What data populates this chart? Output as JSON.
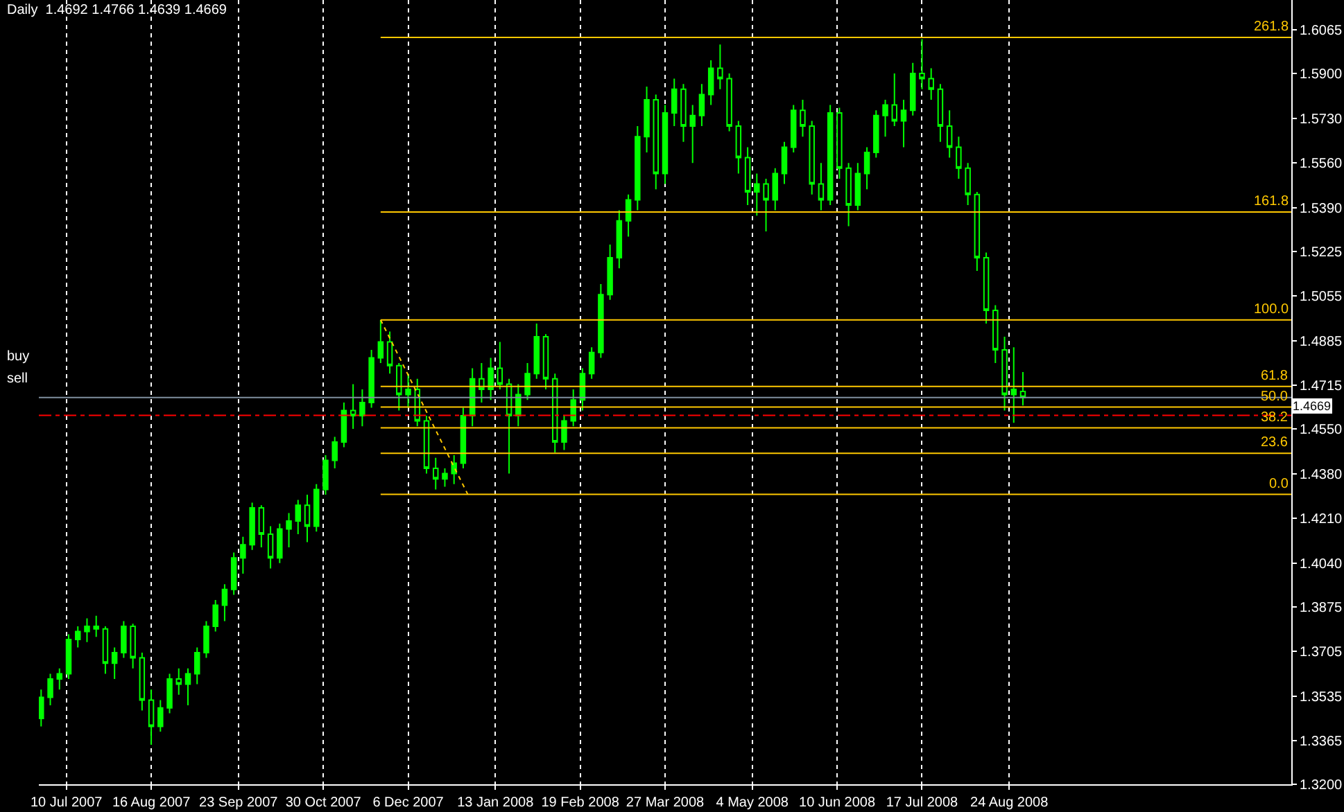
{
  "chart_data": {
    "type": "candlestick",
    "title": "Daily  1.4692 1.4766 1.4639 1.4669",
    "color": "#00ff00",
    "x": [
      "2007-06-29",
      "2007-07-03",
      "2007-07-07",
      "2007-07-11",
      "2007-07-15",
      "2007-07-19",
      "2007-07-23",
      "2007-07-27",
      "2007-07-31",
      "2007-08-04",
      "2007-08-08",
      "2007-08-12",
      "2007-08-16",
      "2007-08-20",
      "2007-08-24",
      "2007-08-28",
      "2007-09-01",
      "2007-09-05",
      "2007-09-09",
      "2007-09-13",
      "2007-09-17",
      "2007-09-21",
      "2007-09-25",
      "2007-09-29",
      "2007-10-03",
      "2007-10-07",
      "2007-10-11",
      "2007-10-15",
      "2007-10-19",
      "2007-10-23",
      "2007-10-27",
      "2007-10-31",
      "2007-11-04",
      "2007-11-08",
      "2007-11-12",
      "2007-11-16",
      "2007-11-20",
      "2007-11-24",
      "2007-11-28",
      "2007-12-02",
      "2007-12-06",
      "2007-12-10",
      "2007-12-14",
      "2007-12-18",
      "2007-12-22",
      "2007-12-26",
      "2007-12-30",
      "2008-01-03",
      "2008-01-07",
      "2008-01-11",
      "2008-01-15",
      "2008-01-19",
      "2008-01-23",
      "2008-01-27",
      "2008-01-31",
      "2008-02-04",
      "2008-02-08",
      "2008-02-12",
      "2008-02-16",
      "2008-02-20",
      "2008-02-24",
      "2008-02-28",
      "2008-03-03",
      "2008-03-07",
      "2008-03-11",
      "2008-03-15",
      "2008-03-19",
      "2008-03-23",
      "2008-03-27",
      "2008-03-31",
      "2008-04-04",
      "2008-04-08",
      "2008-04-12",
      "2008-04-16",
      "2008-04-20",
      "2008-04-24",
      "2008-04-28",
      "2008-05-02",
      "2008-05-06",
      "2008-05-10",
      "2008-05-14",
      "2008-05-18",
      "2008-05-22",
      "2008-05-26",
      "2008-05-30",
      "2008-06-03",
      "2008-06-07",
      "2008-06-11",
      "2008-06-15",
      "2008-06-19",
      "2008-06-23",
      "2008-06-27",
      "2008-07-01",
      "2008-07-05",
      "2008-07-09",
      "2008-07-13",
      "2008-07-17",
      "2008-07-21",
      "2008-07-25",
      "2008-07-29",
      "2008-08-02",
      "2008-08-06",
      "2008-08-10",
      "2008-08-14",
      "2008-08-18",
      "2008-08-22",
      "2008-08-26",
      "2008-08-30"
    ],
    "ohlc": [
      [
        1.345,
        1.356,
        1.342,
        1.353
      ],
      [
        1.353,
        1.362,
        1.35,
        1.36
      ],
      [
        1.36,
        1.364,
        1.356,
        1.362
      ],
      [
        1.362,
        1.377,
        1.36,
        1.375
      ],
      [
        1.375,
        1.38,
        1.372,
        1.378
      ],
      [
        1.378,
        1.383,
        1.374,
        1.38
      ],
      [
        1.38,
        1.384,
        1.376,
        1.379
      ],
      [
        1.379,
        1.38,
        1.362,
        1.366
      ],
      [
        1.366,
        1.372,
        1.36,
        1.37
      ],
      [
        1.37,
        1.382,
        1.368,
        1.38
      ],
      [
        1.38,
        1.381,
        1.364,
        1.368
      ],
      [
        1.368,
        1.37,
        1.348,
        1.352
      ],
      [
        1.352,
        1.356,
        1.335,
        1.342
      ],
      [
        1.342,
        1.352,
        1.34,
        1.349
      ],
      [
        1.349,
        1.362,
        1.347,
        1.36
      ],
      [
        1.36,
        1.364,
        1.354,
        1.358
      ],
      [
        1.358,
        1.364,
        1.35,
        1.362
      ],
      [
        1.362,
        1.372,
        1.358,
        1.37
      ],
      [
        1.37,
        1.382,
        1.368,
        1.38
      ],
      [
        1.38,
        1.39,
        1.378,
        1.388
      ],
      [
        1.388,
        1.396,
        1.382,
        1.394
      ],
      [
        1.394,
        1.408,
        1.392,
        1.406
      ],
      [
        1.406,
        1.414,
        1.4,
        1.411
      ],
      [
        1.411,
        1.427,
        1.409,
        1.425
      ],
      [
        1.425,
        1.426,
        1.41,
        1.415
      ],
      [
        1.415,
        1.418,
        1.402,
        1.406
      ],
      [
        1.406,
        1.419,
        1.404,
        1.417
      ],
      [
        1.417,
        1.423,
        1.41,
        1.42
      ],
      [
        1.42,
        1.428,
        1.415,
        1.426
      ],
      [
        1.426,
        1.43,
        1.412,
        1.418
      ],
      [
        1.418,
        1.434,
        1.416,
        1.432
      ],
      [
        1.432,
        1.445,
        1.43,
        1.443
      ],
      [
        1.443,
        1.452,
        1.44,
        1.45
      ],
      [
        1.45,
        1.465,
        1.448,
        1.462
      ],
      [
        1.462,
        1.472,
        1.455,
        1.46
      ],
      [
        1.46,
        1.47,
        1.456,
        1.465
      ],
      [
        1.465,
        1.485,
        1.463,
        1.482
      ],
      [
        1.482,
        1.4964,
        1.48,
        1.488
      ],
      [
        1.488,
        1.492,
        1.476,
        1.479
      ],
      [
        1.479,
        1.48,
        1.462,
        1.468
      ],
      [
        1.468,
        1.476,
        1.463,
        1.47
      ],
      [
        1.47,
        1.474,
        1.456,
        1.458
      ],
      [
        1.458,
        1.46,
        1.438,
        1.44
      ],
      [
        1.44,
        1.444,
        1.432,
        1.436
      ],
      [
        1.436,
        1.44,
        1.433,
        1.438
      ],
      [
        1.438,
        1.445,
        1.434,
        1.442
      ],
      [
        1.442,
        1.463,
        1.44,
        1.46
      ],
      [
        1.46,
        1.478,
        1.456,
        1.474
      ],
      [
        1.474,
        1.48,
        1.465,
        1.47
      ],
      [
        1.47,
        1.482,
        1.466,
        1.478
      ],
      [
        1.478,
        1.488,
        1.47,
        1.472
      ],
      [
        1.472,
        1.474,
        1.438,
        1.46
      ],
      [
        1.46,
        1.472,
        1.456,
        1.468
      ],
      [
        1.468,
        1.48,
        1.466,
        1.476
      ],
      [
        1.476,
        1.495,
        1.474,
        1.49
      ],
      [
        1.49,
        1.491,
        1.47,
        1.474
      ],
      [
        1.474,
        1.476,
        1.446,
        1.45
      ],
      [
        1.45,
        1.46,
        1.447,
        1.458
      ],
      [
        1.458,
        1.47,
        1.456,
        1.466
      ],
      [
        1.466,
        1.478,
        1.462,
        1.476
      ],
      [
        1.476,
        1.486,
        1.474,
        1.484
      ],
      [
        1.484,
        1.51,
        1.482,
        1.506
      ],
      [
        1.506,
        1.525,
        1.504,
        1.52
      ],
      [
        1.52,
        1.538,
        1.516,
        1.534
      ],
      [
        1.534,
        1.544,
        1.528,
        1.542
      ],
      [
        1.542,
        1.57,
        1.538,
        1.566
      ],
      [
        1.566,
        1.585,
        1.56,
        1.58
      ],
      [
        1.58,
        1.582,
        1.546,
        1.552
      ],
      [
        1.552,
        1.578,
        1.548,
        1.575
      ],
      [
        1.575,
        1.588,
        1.57,
        1.584
      ],
      [
        1.584,
        1.586,
        1.564,
        1.57
      ],
      [
        1.57,
        1.578,
        1.556,
        1.574
      ],
      [
        1.574,
        1.586,
        1.57,
        1.582
      ],
      [
        1.582,
        1.595,
        1.578,
        1.592
      ],
      [
        1.592,
        1.601,
        1.584,
        1.588
      ],
      [
        1.588,
        1.59,
        1.568,
        1.57
      ],
      [
        1.57,
        1.572,
        1.552,
        1.558
      ],
      [
        1.558,
        1.562,
        1.54,
        1.545
      ],
      [
        1.545,
        1.552,
        1.536,
        1.548
      ],
      [
        1.548,
        1.55,
        1.53,
        1.542
      ],
      [
        1.542,
        1.554,
        1.538,
        1.552
      ],
      [
        1.552,
        1.564,
        1.548,
        1.562
      ],
      [
        1.562,
        1.578,
        1.56,
        1.576
      ],
      [
        1.576,
        1.58,
        1.566,
        1.57
      ],
      [
        1.57,
        1.572,
        1.544,
        1.548
      ],
      [
        1.548,
        1.556,
        1.538,
        1.542
      ],
      [
        1.542,
        1.578,
        1.54,
        1.575
      ],
      [
        1.575,
        1.577,
        1.55,
        1.554
      ],
      [
        1.554,
        1.556,
        1.532,
        1.54
      ],
      [
        1.54,
        1.556,
        1.538,
        1.552
      ],
      [
        1.552,
        1.562,
        1.546,
        1.56
      ],
      [
        1.56,
        1.576,
        1.558,
        1.574
      ],
      [
        1.574,
        1.58,
        1.566,
        1.578
      ],
      [
        1.578,
        1.59,
        1.57,
        1.572
      ],
      [
        1.572,
        1.58,
        1.562,
        1.576
      ],
      [
        1.576,
        1.594,
        1.574,
        1.59
      ],
      [
        1.59,
        1.603,
        1.584,
        1.588
      ],
      [
        1.588,
        1.592,
        1.58,
        1.584
      ],
      [
        1.584,
        1.586,
        1.564,
        1.57
      ],
      [
        1.57,
        1.576,
        1.558,
        1.562
      ],
      [
        1.562,
        1.566,
        1.55,
        1.554
      ],
      [
        1.554,
        1.556,
        1.54,
        1.544
      ],
      [
        1.544,
        1.545,
        1.515,
        1.52
      ],
      [
        1.52,
        1.522,
        1.495,
        1.5
      ],
      [
        1.5,
        1.502,
        1.48,
        1.485
      ],
      [
        1.485,
        1.49,
        1.462,
        1.468
      ],
      [
        1.468,
        1.486,
        1.4573,
        1.47
      ],
      [
        1.4692,
        1.4766,
        1.4639,
        1.4669
      ]
    ],
    "series": [
      {
        "type": "line",
        "name": "261.8",
        "color": "#ffc800",
        "x": [
          "2007-11-24",
          "2008-12-25"
        ],
        "values": [
          1.6037,
          1.6037
        ]
      },
      {
        "type": "line",
        "name": "161.8",
        "color": "#ffc800",
        "x": [
          "2007-11-24",
          "2008-12-25"
        ],
        "values": [
          1.5374,
          1.5374
        ]
      },
      {
        "type": "line",
        "name": "100.0",
        "color": "#ffc800",
        "x": [
          "2007-11-24",
          "2008-12-25"
        ],
        "values": [
          1.4964,
          1.4964
        ]
      },
      {
        "type": "line",
        "name": "61.8",
        "color": "#ffc800",
        "x": [
          "2007-11-24",
          "2008-12-25"
        ],
        "values": [
          1.4711,
          1.4711
        ]
      },
      {
        "type": "line",
        "name": "50.0",
        "color": "#ffc800",
        "x": [
          "2007-11-24",
          "2008-12-25"
        ],
        "values": [
          1.4633,
          1.4633
        ]
      },
      {
        "type": "line",
        "name": "38.2",
        "color": "#ffc800",
        "x": [
          "2007-11-24",
          "2008-12-25"
        ],
        "values": [
          1.4554,
          1.4554
        ]
      },
      {
        "type": "line",
        "name": "23.6",
        "color": "#ffc800",
        "x": [
          "2007-11-24",
          "2008-12-25"
        ],
        "values": [
          1.4457,
          1.4457
        ]
      },
      {
        "type": "line",
        "name": "0.0",
        "color": "#ffc800",
        "x": [
          "2007-11-24",
          "2008-12-25"
        ],
        "values": [
          1.4301,
          1.4301
        ]
      },
      {
        "type": "line",
        "color": "#ffc800",
        "line_style": "dotted",
        "x": [
          "2007-11-24",
          "2008-01-01"
        ],
        "values": [
          1.4964,
          1.4301
        ]
      }
    ],
    "ref_lines": [
      {
        "axis": "y",
        "value": 1.4669,
        "label": "1.4669",
        "color": "#8090a0",
        "line_style": "solid"
      },
      {
        "axis": "y",
        "value": 1.4601,
        "label": null,
        "color": "#ff0000",
        "line_style": "dashed"
      }
    ],
    "annotations": [
      "buy",
      "sell"
    ],
    "xlim": [
      "2007-06-28",
      "2008-12-25"
    ],
    "xticks": [
      {
        "value": "2007-07-10",
        "label": "10 Jul 2007"
      },
      {
        "value": "2007-08-16",
        "label": "16 Aug 2007"
      },
      {
        "value": "2007-09-23",
        "label": "23 Sep 2007"
      },
      {
        "value": "2007-10-30",
        "label": "30 Oct 2007"
      },
      {
        "value": "2007-12-06",
        "label": "6 Dec 2007"
      },
      {
        "value": "2008-01-13",
        "label": "13 Jan 2008"
      },
      {
        "value": "2008-02-19",
        "label": "19 Feb 2008"
      },
      {
        "value": "2008-03-27",
        "label": "27 Mar 2008"
      },
      {
        "value": "2008-05-04",
        "label": "4 May 2008"
      },
      {
        "value": "2008-06-10",
        "label": "10 Jun 2008"
      },
      {
        "value": "2008-07-17",
        "label": "17 Jul 2008"
      },
      {
        "value": "2008-08-24",
        "label": "24 Aug 2008"
      }
    ],
    "ylim": [
      1.32,
      1.6179
    ],
    "yticks": [
      1.6065,
      {
        "value": 1.59,
        "label": "1.5900"
      },
      {
        "value": 1.573,
        "label": "1.5730"
      },
      {
        "value": 1.556,
        "label": "1.5560"
      },
      {
        "value": 1.539,
        "label": "1.5390"
      },
      1.5225,
      1.5055,
      1.4885,
      1.4715,
      {
        "value": 1.455,
        "label": "1.4550"
      },
      {
        "value": 1.438,
        "label": "1.4380"
      },
      {
        "value": 1.421,
        "label": "1.4210"
      },
      {
        "value": 1.404,
        "label": "1.4040"
      },
      1.3875,
      1.3705,
      1.3535,
      1.3365,
      {
        "value": 1.32,
        "label": "1.3200"
      }
    ],
    "grid": "x",
    "marker": "none"
  }
}
